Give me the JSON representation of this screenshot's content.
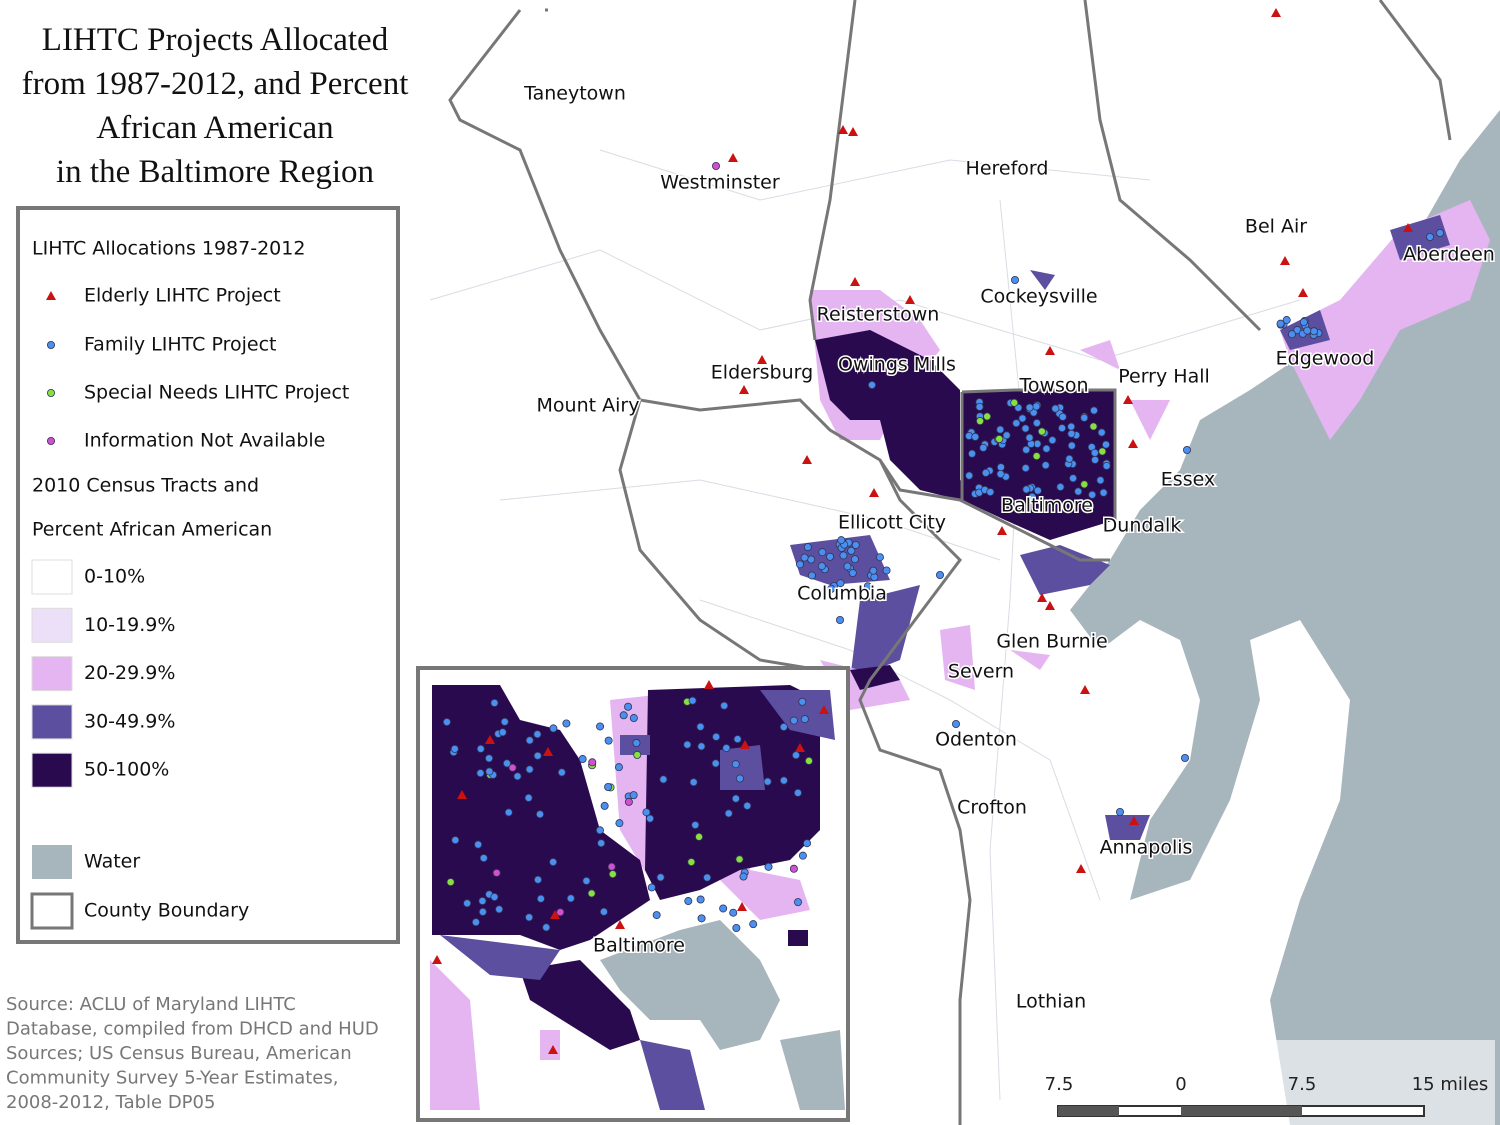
{
  "header": {
    "title_lines": [
      "LIHTC Projects Allocated",
      "from 1987-2012, and Percent",
      "African American",
      "in the Baltimore Region"
    ]
  },
  "legend": {
    "heading": "LIHTC Allocations 1987-2012",
    "points": [
      "Elderly LIHTC Project",
      "Family  LIHTC Project",
      "Special Needs  LIHTC Project",
      "Information Not Available"
    ],
    "tracts_heading": [
      "2010 Census Tracts and",
      "Percent African American"
    ],
    "classes": [
      "0-10%",
      "10-19.9%",
      "20-29.9%",
      "30-49.9%",
      "50-100%"
    ],
    "other": [
      "Water",
      "County Boundary"
    ]
  },
  "places": [
    "Taneytown",
    "Westminster",
    "Hereford",
    "Bel Air",
    "Aberdeen",
    "Cockeysville",
    "Reisterstown",
    "Owings Mills",
    "Edgewood",
    "Eldersburg",
    "Towson",
    "Perry Hall",
    "Mount Airy",
    "Essex",
    "Baltimore",
    "Dundalk",
    "Ellicott City",
    "Columbia",
    "Glen Burnie",
    "Severn",
    "Odenton",
    "Crofton",
    "Annapolis",
    "Lothian"
  ],
  "inset": {
    "label": "Baltimore"
  },
  "scale_bar": {
    "labels": [
      "7.5",
      "0",
      "7.5",
      "15 miles"
    ]
  },
  "source": [
    "Source:  ACLU of Maryland LIHTC",
    "Database, compiled from DHCD and HUD",
    "Sources; US Census Bureau, American",
    "Community Survey 5-Year Estimates,",
    "2008-2012, Table DP05"
  ]
}
